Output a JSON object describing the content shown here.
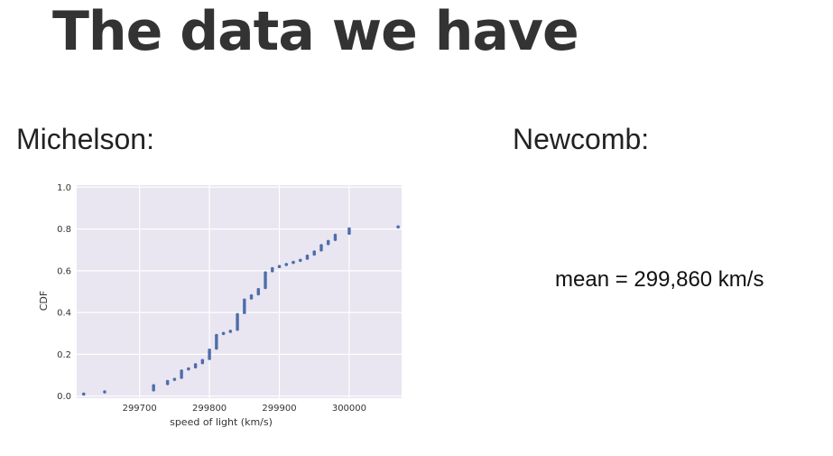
{
  "slide": {
    "title": "The data we have",
    "left_label": "Michelson:",
    "right_label": "Newcomb:",
    "newcomb_mean": "mean = 299,860 km/s"
  },
  "colors": {
    "plot_bg": "#e9e5f1",
    "grid": "#ffffff",
    "points": "#4c6ea9",
    "text": "#333333"
  },
  "chart_data": {
    "type": "scatter",
    "title": "",
    "xlabel": "speed of light (km/s)",
    "ylabel": "CDF",
    "xlim": [
      299610,
      300075
    ],
    "ylim": [
      -0.01,
      1.01
    ],
    "xticks": [
      299700,
      299800,
      299900,
      300000
    ],
    "xtick_labels": [
      "299700",
      "299800",
      "299900",
      "300000"
    ],
    "yticks": [
      0.0,
      0.2,
      0.4,
      0.6,
      0.8,
      1.0
    ],
    "ytick_labels": [
      "0.0",
      "0.2",
      "0.4",
      "0.6",
      "0.8",
      "1.0"
    ],
    "grid": true,
    "series": [
      {
        "x": [
          299620,
          299650,
          299720,
          299720,
          299720,
          299740,
          299740,
          299750,
          299760,
          299760,
          299760,
          299760,
          299770,
          299780,
          299780,
          299790,
          299790,
          299800,
          299800,
          299800,
          299800,
          299800,
          299810,
          299810,
          299810,
          299810,
          299810,
          299810,
          299810,
          299820,
          299830,
          299840,
          299840,
          299840,
          299840,
          299840,
          299840,
          299840,
          299840,
          299850,
          299850,
          299850,
          299850,
          299850,
          299850,
          299850,
          299860,
          299860,
          299870,
          299870,
          299870,
          299880,
          299880,
          299880,
          299880,
          299880,
          299880,
          299880,
          299880,
          299890,
          299890,
          299900,
          299910,
          299920,
          299930,
          299940,
          299940,
          299950,
          299950,
          299960,
          299960,
          299960,
          299970,
          299970,
          299980,
          299980,
          299980,
          300000,
          300000,
          300000,
          300070
        ],
        "y": [
          0.01,
          0.02,
          0.03,
          0.04,
          0.05,
          0.06,
          0.07,
          0.08,
          0.09,
          0.1,
          0.11,
          0.12,
          0.13,
          0.14,
          0.15,
          0.16,
          0.17,
          0.18,
          0.19,
          0.2,
          0.21,
          0.22,
          0.23,
          0.24,
          0.25,
          0.26,
          0.27,
          0.28,
          0.29,
          0.3,
          0.31,
          0.32,
          0.33,
          0.34,
          0.35,
          0.36,
          0.37,
          0.38,
          0.39,
          0.4,
          0.41,
          0.42,
          0.43,
          0.44,
          0.45,
          0.46,
          0.47,
          0.48,
          0.49,
          0.5,
          0.51,
          0.52,
          0.53,
          0.54,
          0.55,
          0.56,
          0.57,
          0.58,
          0.59,
          0.6,
          0.61,
          0.62,
          0.63,
          0.64,
          0.65,
          0.66,
          0.67,
          0.68,
          0.69,
          0.7,
          0.71,
          0.72,
          0.73,
          0.74,
          0.75,
          0.76,
          0.77,
          0.78,
          0.79,
          0.8,
          0.81
        ]
      }
    ]
  }
}
